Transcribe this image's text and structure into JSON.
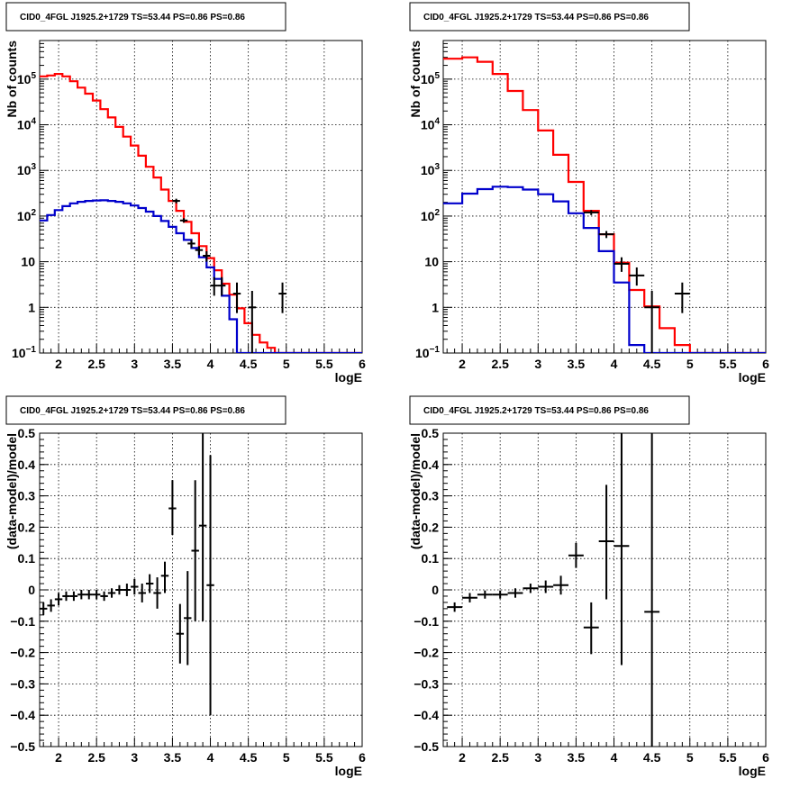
{
  "chart_data": [
    {
      "type": "line",
      "title": "CID0_4FGL J1925.2+1729 TS=53.44 PS=0.86 PS=0.86",
      "xlabel": "logE",
      "ylabel": "Nb of counts",
      "log_y": true,
      "xlim": [
        1.75,
        6
      ],
      "ylim": [
        0.1,
        700000
      ],
      "grid": true,
      "x_ticks": [
        2,
        2.5,
        3,
        3.5,
        4,
        4.5,
        5,
        5.5,
        6
      ],
      "y_ticks": [
        {
          "value": 0.1,
          "base": "10",
          "exp": "−1",
          "label": ""
        },
        {
          "value": 1,
          "base": "1",
          "exp": "",
          "label": "1"
        },
        {
          "value": 10,
          "base": "10",
          "exp": "",
          "label": "10"
        },
        {
          "value": 100,
          "base": "10",
          "exp": "2",
          "label": ""
        },
        {
          "value": 1000,
          "base": "10",
          "exp": "3",
          "label": ""
        },
        {
          "value": 10000,
          "base": "10",
          "exp": "4",
          "label": ""
        },
        {
          "value": 100000,
          "base": "10",
          "exp": "5",
          "label": ""
        }
      ],
      "series": [
        {
          "color": "#ff0000",
          "style": "step",
          "edges": [
            1.75,
            1.85,
            1.95,
            2.05,
            2.15,
            2.25,
            2.35,
            2.45,
            2.55,
            2.65,
            2.75,
            2.85,
            2.95,
            3.05,
            3.15,
            3.25,
            3.35,
            3.45,
            3.55,
            3.65,
            3.75,
            3.85,
            3.95,
            4.05,
            4.15,
            4.25,
            4.35,
            4.45,
            4.55,
            4.65,
            4.75,
            4.85,
            4.95,
            5.05,
            5.15,
            5.25,
            5.35,
            5.45,
            5.55,
            5.65,
            5.75,
            5.85,
            5.95,
            6.0
          ],
          "values": [
            115000,
            120000,
            130000,
            115000,
            90000,
            65000,
            48000,
            34000,
            22000,
            14500,
            9000,
            5500,
            3500,
            2100,
            1200,
            700,
            380,
            215,
            130,
            75,
            42,
            22,
            12,
            6.5,
            3.3,
            1.9,
            0.95,
            0.45,
            0.25,
            0.17,
            0.13,
            0.1,
            0.1,
            0.1,
            0.1,
            0.1,
            0.1,
            0.1,
            0.1,
            0.1,
            0.1,
            0.1,
            0.1
          ]
        },
        {
          "color": "#0000cc",
          "style": "step",
          "edges": [
            1.75,
            1.85,
            1.95,
            2.05,
            2.15,
            2.25,
            2.35,
            2.45,
            2.55,
            2.65,
            2.75,
            2.85,
            2.95,
            3.05,
            3.15,
            3.25,
            3.35,
            3.45,
            3.55,
            3.65,
            3.75,
            3.85,
            3.95,
            4.05,
            4.15,
            4.25,
            4.35,
            4.45,
            4.55,
            4.65,
            4.75,
            4.85,
            4.95,
            5.05,
            5.15,
            5.25,
            5.35,
            5.45,
            5.55,
            5.65,
            5.75,
            5.85,
            5.95,
            6.0
          ],
          "values": [
            80,
            105,
            135,
            165,
            190,
            205,
            215,
            220,
            222,
            215,
            205,
            190,
            170,
            150,
            125,
            100,
            78,
            58,
            42,
            30,
            20,
            12.5,
            7.5,
            4.2,
            1.8,
            0.55,
            0.1,
            0.1,
            0.1,
            0.1,
            0.1,
            0.1,
            0.1,
            0.1,
            0.1,
            0.1,
            0.1,
            0.1,
            0.1,
            0.1,
            0.1,
            0.1,
            0.1
          ]
        },
        {
          "color": "#000000",
          "style": "errorbar",
          "points": [
            {
              "x": 3.55,
              "y": 215,
              "xerr": 0.05,
              "ylo": 190,
              "yhi": 240
            },
            {
              "x": 3.65,
              "y": 80,
              "xerr": 0.05,
              "ylo": 72,
              "yhi": 90
            },
            {
              "x": 3.75,
              "y": 25,
              "xerr": 0.05,
              "ylo": 20,
              "yhi": 30
            },
            {
              "x": 3.85,
              "y": 18,
              "xerr": 0.05,
              "ylo": 14,
              "yhi": 22
            },
            {
              "x": 3.95,
              "y": 13.5,
              "xerr": 0.05,
              "ylo": 10,
              "yhi": 17
            },
            {
              "x": 4.05,
              "y": 3,
              "xerr": 0.05,
              "ylo": 1.8,
              "yhi": 4.6
            },
            {
              "x": 4.15,
              "y": 3,
              "xerr": 0.05,
              "ylo": 1.8,
              "yhi": 4.6
            },
            {
              "x": 4.35,
              "y": 2,
              "xerr": 0.05,
              "ylo": 0.75,
              "yhi": 3.5
            },
            {
              "x": 4.55,
              "y": 1,
              "xerr": 0.05,
              "ylo": 0.1,
              "yhi": 2.3
            },
            {
              "x": 4.95,
              "y": 2,
              "xerr": 0.05,
              "ylo": 0.75,
              "yhi": 3.5
            }
          ]
        }
      ]
    },
    {
      "type": "line",
      "title": "CID0_4FGL J1925.2+1729 TS=53.44 PS=0.86 PS=0.86",
      "xlabel": "logE",
      "ylabel": "Nb of counts",
      "log_y": true,
      "xlim": [
        1.75,
        6
      ],
      "ylim": [
        0.1,
        700000
      ],
      "grid": true,
      "x_ticks": [
        2,
        2.5,
        3,
        3.5,
        4,
        4.5,
        5,
        5.5,
        6
      ],
      "y_ticks": [
        {
          "value": 0.1,
          "base": "10",
          "exp": "−1",
          "label": ""
        },
        {
          "value": 1,
          "base": "1",
          "exp": "",
          "label": "1"
        },
        {
          "value": 10,
          "base": "10",
          "exp": "",
          "label": "10"
        },
        {
          "value": 100,
          "base": "10",
          "exp": "2",
          "label": ""
        },
        {
          "value": 1000,
          "base": "10",
          "exp": "3",
          "label": ""
        },
        {
          "value": 10000,
          "base": "10",
          "exp": "4",
          "label": ""
        },
        {
          "value": 100000,
          "base": "10",
          "exp": "5",
          "label": ""
        }
      ],
      "series": [
        {
          "color": "#ff0000",
          "style": "step",
          "edges": [
            1.75,
            2.0,
            2.2,
            2.4,
            2.6,
            2.8,
            3.0,
            3.2,
            3.4,
            3.6,
            3.8,
            4.0,
            4.2,
            4.4,
            4.6,
            4.8,
            5.0,
            5.2,
            5.4,
            5.6,
            5.8,
            6.0
          ],
          "values": [
            280000,
            300000,
            240000,
            130000,
            55000,
            21000,
            7500,
            2200,
            560,
            130,
            40,
            9.5,
            2.4,
            1.05,
            0.35,
            0.15,
            0.1,
            0.1,
            0.1,
            0.1,
            0.1
          ]
        },
        {
          "color": "#0000cc",
          "style": "step",
          "edges": [
            1.75,
            2.0,
            2.2,
            2.4,
            2.6,
            2.8,
            3.0,
            3.2,
            3.4,
            3.6,
            3.8,
            4.0,
            4.2,
            4.4,
            4.6,
            4.8,
            5.0,
            5.2,
            5.4,
            5.6,
            5.8,
            6.0
          ],
          "values": [
            190,
            310,
            390,
            440,
            430,
            380,
            300,
            210,
            115,
            55,
            17,
            3.5,
            0.15,
            0.1,
            0.1,
            0.1,
            0.1,
            0.1,
            0.1,
            0.1,
            0.1
          ]
        },
        {
          "color": "#000000",
          "style": "errorbar",
          "points": [
            {
              "x": 3.7,
              "y": 120,
              "xerr": 0.1,
              "ylo": 105,
              "yhi": 135
            },
            {
              "x": 3.9,
              "y": 40,
              "xerr": 0.1,
              "ylo": 33,
              "yhi": 47
            },
            {
              "x": 4.1,
              "y": 9,
              "xerr": 0.1,
              "ylo": 6,
              "yhi": 12.5
            },
            {
              "x": 4.3,
              "y": 5,
              "xerr": 0.1,
              "ylo": 3,
              "yhi": 7.5
            },
            {
              "x": 4.5,
              "y": 1,
              "xerr": 0.1,
              "ylo": 0.1,
              "yhi": 2.3
            },
            {
              "x": 4.9,
              "y": 2,
              "xerr": 0.1,
              "ylo": 0.75,
              "yhi": 3.5
            }
          ]
        }
      ]
    },
    {
      "type": "scatter",
      "title": "CID0_4FGL J1925.2+1729 TS=53.44 PS=0.86 PS=0.86",
      "xlabel": "logE",
      "ylabel": "(data-model)/model",
      "log_y": false,
      "xlim": [
        1.75,
        6
      ],
      "ylim": [
        -0.5,
        0.5
      ],
      "grid": true,
      "x_ticks": [
        2,
        2.5,
        3,
        3.5,
        4,
        4.5,
        5,
        5.5,
        6
      ],
      "y_ticks": [
        {
          "value": -0.5,
          "label": "−0.5"
        },
        {
          "value": -0.4,
          "label": "−0.4"
        },
        {
          "value": -0.3,
          "label": "−0.3"
        },
        {
          "value": -0.2,
          "label": "−0.2"
        },
        {
          "value": -0.1,
          "label": "−0.1"
        },
        {
          "value": 0,
          "label": "0"
        },
        {
          "value": 0.1,
          "label": "0.1"
        },
        {
          "value": 0.2,
          "label": "0.2"
        },
        {
          "value": 0.3,
          "label": "0.3"
        },
        {
          "value": 0.4,
          "label": "0.4"
        },
        {
          "value": 0.5,
          "label": "0.5"
        }
      ],
      "series": [
        {
          "color": "#000000",
          "style": "errorbar",
          "points": [
            {
              "x": 1.8,
              "y": -0.06,
              "xerr": 0.05,
              "ylo": -0.08,
              "yhi": -0.04
            },
            {
              "x": 1.9,
              "y": -0.05,
              "xerr": 0.05,
              "ylo": -0.07,
              "yhi": -0.03
            },
            {
              "x": 2.0,
              "y": -0.03,
              "xerr": 0.05,
              "ylo": -0.05,
              "yhi": -0.01
            },
            {
              "x": 2.1,
              "y": -0.02,
              "xerr": 0.05,
              "ylo": -0.035,
              "yhi": -0.005
            },
            {
              "x": 2.2,
              "y": -0.02,
              "xerr": 0.05,
              "ylo": -0.035,
              "yhi": -0.005
            },
            {
              "x": 2.3,
              "y": -0.015,
              "xerr": 0.05,
              "ylo": -0.03,
              "yhi": 0.0
            },
            {
              "x": 2.4,
              "y": -0.015,
              "xerr": 0.05,
              "ylo": -0.03,
              "yhi": 0.0
            },
            {
              "x": 2.5,
              "y": -0.015,
              "xerr": 0.05,
              "ylo": -0.03,
              "yhi": 0.0
            },
            {
              "x": 2.6,
              "y": -0.02,
              "xerr": 0.05,
              "ylo": -0.035,
              "yhi": -0.005
            },
            {
              "x": 2.7,
              "y": -0.01,
              "xerr": 0.05,
              "ylo": -0.025,
              "yhi": 0.005
            },
            {
              "x": 2.8,
              "y": 0.0,
              "xerr": 0.05,
              "ylo": -0.015,
              "yhi": 0.015
            },
            {
              "x": 2.9,
              "y": 0.0,
              "xerr": 0.05,
              "ylo": -0.02,
              "yhi": 0.02
            },
            {
              "x": 3.0,
              "y": 0.01,
              "xerr": 0.05,
              "ylo": -0.015,
              "yhi": 0.035
            },
            {
              "x": 3.1,
              "y": -0.01,
              "xerr": 0.05,
              "ylo": -0.04,
              "yhi": 0.02
            },
            {
              "x": 3.2,
              "y": 0.02,
              "xerr": 0.05,
              "ylo": -0.01,
              "yhi": 0.05
            },
            {
              "x": 3.3,
              "y": -0.01,
              "xerr": 0.05,
              "ylo": -0.06,
              "yhi": 0.04
            },
            {
              "x": 3.4,
              "y": 0.045,
              "xerr": 0.05,
              "ylo": -0.01,
              "yhi": 0.09
            },
            {
              "x": 3.5,
              "y": 0.26,
              "xerr": 0.05,
              "ylo": 0.175,
              "yhi": 0.35
            },
            {
              "x": 3.6,
              "y": -0.14,
              "xerr": 0.05,
              "ylo": -0.235,
              "yhi": -0.045
            },
            {
              "x": 3.7,
              "y": -0.09,
              "xerr": 0.05,
              "ylo": -0.24,
              "yhi": 0.06
            },
            {
              "x": 3.8,
              "y": 0.125,
              "xerr": 0.05,
              "ylo": -0.1,
              "yhi": 0.35
            },
            {
              "x": 3.9,
              "y": 0.205,
              "xerr": 0.05,
              "ylo": -0.1,
              "yhi": 0.5
            },
            {
              "x": 4.0,
              "y": 0.015,
              "xerr": 0.05,
              "ylo": -0.4,
              "yhi": 0.43
            }
          ]
        }
      ]
    },
    {
      "type": "scatter",
      "title": "CID0_4FGL J1925.2+1729 TS=53.44 PS=0.86 PS=0.86",
      "xlabel": "logE",
      "ylabel": "(data-model)/model",
      "log_y": false,
      "xlim": [
        1.75,
        6
      ],
      "ylim": [
        -0.5,
        0.5
      ],
      "grid": true,
      "x_ticks": [
        2,
        2.5,
        3,
        3.5,
        4,
        4.5,
        5,
        5.5,
        6
      ],
      "y_ticks": [
        {
          "value": -0.5,
          "label": "−0.5"
        },
        {
          "value": -0.4,
          "label": "−0.4"
        },
        {
          "value": -0.3,
          "label": "−0.3"
        },
        {
          "value": -0.2,
          "label": "−0.2"
        },
        {
          "value": -0.1,
          "label": "−0.1"
        },
        {
          "value": 0,
          "label": "0"
        },
        {
          "value": 0.1,
          "label": "0.1"
        },
        {
          "value": 0.2,
          "label": "0.2"
        },
        {
          "value": 0.3,
          "label": "0.3"
        },
        {
          "value": 0.4,
          "label": "0.4"
        },
        {
          "value": 0.5,
          "label": "0.5"
        }
      ],
      "series": [
        {
          "color": "#000000",
          "style": "errorbar",
          "points": [
            {
              "x": 1.9,
              "y": -0.055,
              "xerr": 0.1,
              "ylo": -0.07,
              "yhi": -0.04
            },
            {
              "x": 2.1,
              "y": -0.025,
              "xerr": 0.1,
              "ylo": -0.04,
              "yhi": -0.01
            },
            {
              "x": 2.3,
              "y": -0.015,
              "xerr": 0.1,
              "ylo": -0.028,
              "yhi": -0.002
            },
            {
              "x": 2.5,
              "y": -0.015,
              "xerr": 0.1,
              "ylo": -0.028,
              "yhi": -0.002
            },
            {
              "x": 2.7,
              "y": -0.01,
              "xerr": 0.1,
              "ylo": -0.025,
              "yhi": 0.005
            },
            {
              "x": 2.9,
              "y": 0.005,
              "xerr": 0.1,
              "ylo": -0.01,
              "yhi": 0.02
            },
            {
              "x": 3.1,
              "y": 0.01,
              "xerr": 0.1,
              "ylo": -0.01,
              "yhi": 0.03
            },
            {
              "x": 3.3,
              "y": 0.015,
              "xerr": 0.1,
              "ylo": -0.015,
              "yhi": 0.045
            },
            {
              "x": 3.5,
              "y": 0.11,
              "xerr": 0.1,
              "ylo": 0.07,
              "yhi": 0.15
            },
            {
              "x": 3.7,
              "y": -0.12,
              "xerr": 0.1,
              "ylo": -0.205,
              "yhi": -0.04
            },
            {
              "x": 3.9,
              "y": 0.155,
              "xerr": 0.1,
              "ylo": -0.03,
              "yhi": 0.335
            },
            {
              "x": 4.1,
              "y": 0.14,
              "xerr": 0.1,
              "ylo": -0.24,
              "yhi": 0.5
            },
            {
              "x": 4.5,
              "y": -0.07,
              "xerr": 0.1,
              "ylo": -0.5,
              "yhi": 0.5
            }
          ]
        }
      ]
    }
  ]
}
